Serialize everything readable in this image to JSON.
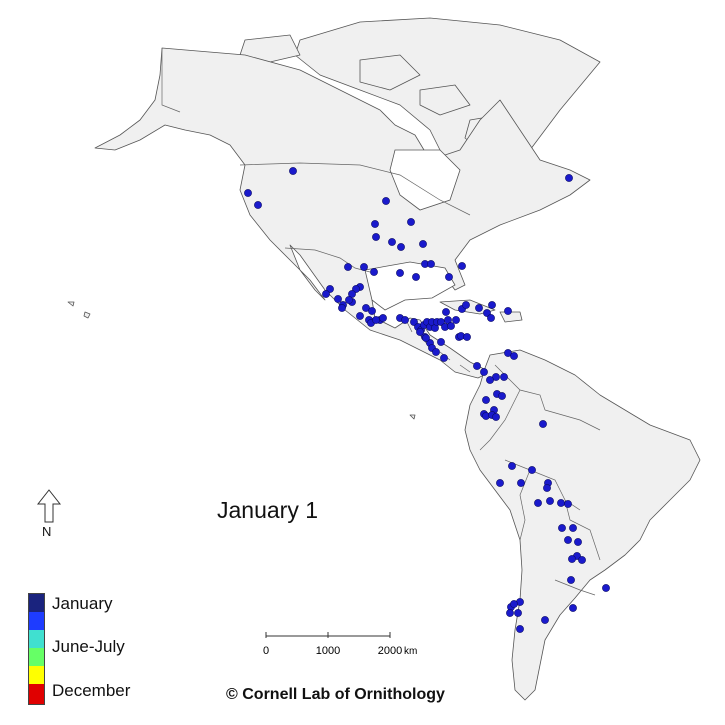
{
  "date_label": "January 1",
  "north_label": "N",
  "legend": {
    "items": [
      {
        "label": "January",
        "color": "#1a237e"
      },
      {
        "label": "",
        "color": "#1e3cff"
      },
      {
        "label": "June-July",
        "color": "#40e0d0"
      },
      {
        "label": "",
        "color": "#66ff66"
      },
      {
        "label": "",
        "color": "#ffff00"
      },
      {
        "label": "December",
        "color": "#e00000"
      }
    ]
  },
  "scale_bar": {
    "ticks": [
      "0",
      "1000",
      "2000"
    ],
    "unit": "km"
  },
  "credit": "© Cornell Lab of Ornithology",
  "observations": {
    "color": "#1a1acc",
    "count": 130
  }
}
